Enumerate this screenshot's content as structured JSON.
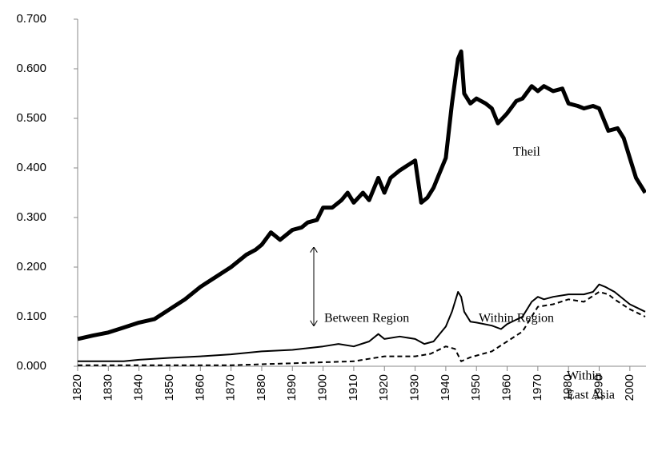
{
  "chart_data": {
    "type": "line",
    "xlim": [
      1820,
      2005
    ],
    "xticks": [
      1820,
      1830,
      1840,
      1850,
      1860,
      1870,
      1880,
      1890,
      1900,
      1910,
      1920,
      1930,
      1940,
      1950,
      1960,
      1970,
      1980,
      1990,
      2000
    ],
    "ylim": [
      0,
      0.7
    ],
    "yticks": [
      {
        "value": 0,
        "label": "0.000"
      },
      {
        "value": 0.1,
        "label": "0.100"
      },
      {
        "value": 0.2,
        "label": "0.200"
      },
      {
        "value": 0.3,
        "label": "0.300"
      },
      {
        "value": 0.4,
        "label": "0.400"
      },
      {
        "value": 0.5,
        "label": "0.500"
      },
      {
        "value": 0.6,
        "label": "0.600"
      },
      {
        "value": 0.7,
        "label": "0.700"
      }
    ],
    "annotations": {
      "theil": "Theil",
      "between": "Between Region",
      "within": "Within Region",
      "east_asia": [
        "Within",
        "East Asia"
      ]
    },
    "series": [
      {
        "color": "#000000",
        "style": "thick",
        "x": [
          1820,
          1825,
          1830,
          1835,
          1840,
          1845,
          1850,
          1855,
          1860,
          1865,
          1870,
          1875,
          1878,
          1880,
          1883,
          1886,
          1890,
          1893,
          1895,
          1898,
          1900,
          1903,
          1906,
          1908,
          1910,
          1913,
          1915,
          1918,
          1920,
          1922,
          1925,
          1930,
          1932,
          1934,
          1936,
          1938,
          1940,
          1942,
          1944,
          1945,
          1946,
          1948,
          1950,
          1953,
          1955,
          1957,
          1960,
          1963,
          1965,
          1968,
          1970,
          1972,
          1975,
          1978,
          1980,
          1983,
          1985,
          1988,
          1990,
          1993,
          1996,
          1998,
          2000,
          2002,
          2005
        ],
        "values": [
          0.055,
          0.062,
          0.068,
          0.078,
          0.088,
          0.095,
          0.115,
          0.135,
          0.16,
          0.18,
          0.2,
          0.225,
          0.235,
          0.245,
          0.27,
          0.255,
          0.275,
          0.28,
          0.29,
          0.295,
          0.32,
          0.32,
          0.335,
          0.35,
          0.33,
          0.35,
          0.335,
          0.38,
          0.35,
          0.38,
          0.395,
          0.415,
          0.33,
          0.34,
          0.36,
          0.39,
          0.42,
          0.53,
          0.62,
          0.635,
          0.55,
          0.53,
          0.54,
          0.53,
          0.52,
          0.49,
          0.51,
          0.535,
          0.54,
          0.565,
          0.555,
          0.565,
          0.555,
          0.56,
          0.53,
          0.525,
          0.52,
          0.525,
          0.52,
          0.475,
          0.48,
          0.46,
          0.42,
          0.38,
          0.35
        ]
      },
      {
        "color": "#000000",
        "style": "solid",
        "x": [
          1820,
          1835,
          1840,
          1850,
          1860,
          1870,
          1880,
          1890,
          1900,
          1905,
          1910,
          1915,
          1918,
          1920,
          1925,
          1930,
          1933,
          1936,
          1940,
          1942,
          1944,
          1945,
          1946,
          1948,
          1950,
          1955,
          1958,
          1960,
          1965,
          1968,
          1970,
          1972,
          1975,
          1980,
          1985,
          1988,
          1990,
          1992,
          1995,
          2000,
          2005
        ],
        "values": [
          0.01,
          0.01,
          0.013,
          0.017,
          0.02,
          0.024,
          0.03,
          0.033,
          0.04,
          0.045,
          0.04,
          0.05,
          0.065,
          0.055,
          0.06,
          0.055,
          0.045,
          0.05,
          0.08,
          0.11,
          0.15,
          0.14,
          0.11,
          0.09,
          0.088,
          0.082,
          0.075,
          0.085,
          0.1,
          0.13,
          0.14,
          0.135,
          0.14,
          0.145,
          0.145,
          0.15,
          0.165,
          0.16,
          0.15,
          0.125,
          0.11
        ]
      },
      {
        "color": "#000000",
        "style": "dashed",
        "x": [
          1820,
          1870,
          1880,
          1890,
          1900,
          1910,
          1915,
          1920,
          1930,
          1935,
          1940,
          1943,
          1945,
          1948,
          1955,
          1960,
          1965,
          1968,
          1970,
          1975,
          1980,
          1985,
          1990,
          1993,
          1995,
          2000,
          2005
        ],
        "values": [
          0.002,
          0.002,
          0.004,
          0.006,
          0.008,
          0.01,
          0.015,
          0.02,
          0.02,
          0.025,
          0.04,
          0.035,
          0.01,
          0.018,
          0.03,
          0.05,
          0.07,
          0.1,
          0.12,
          0.125,
          0.135,
          0.13,
          0.15,
          0.145,
          0.135,
          0.115,
          0.1
        ]
      }
    ]
  }
}
